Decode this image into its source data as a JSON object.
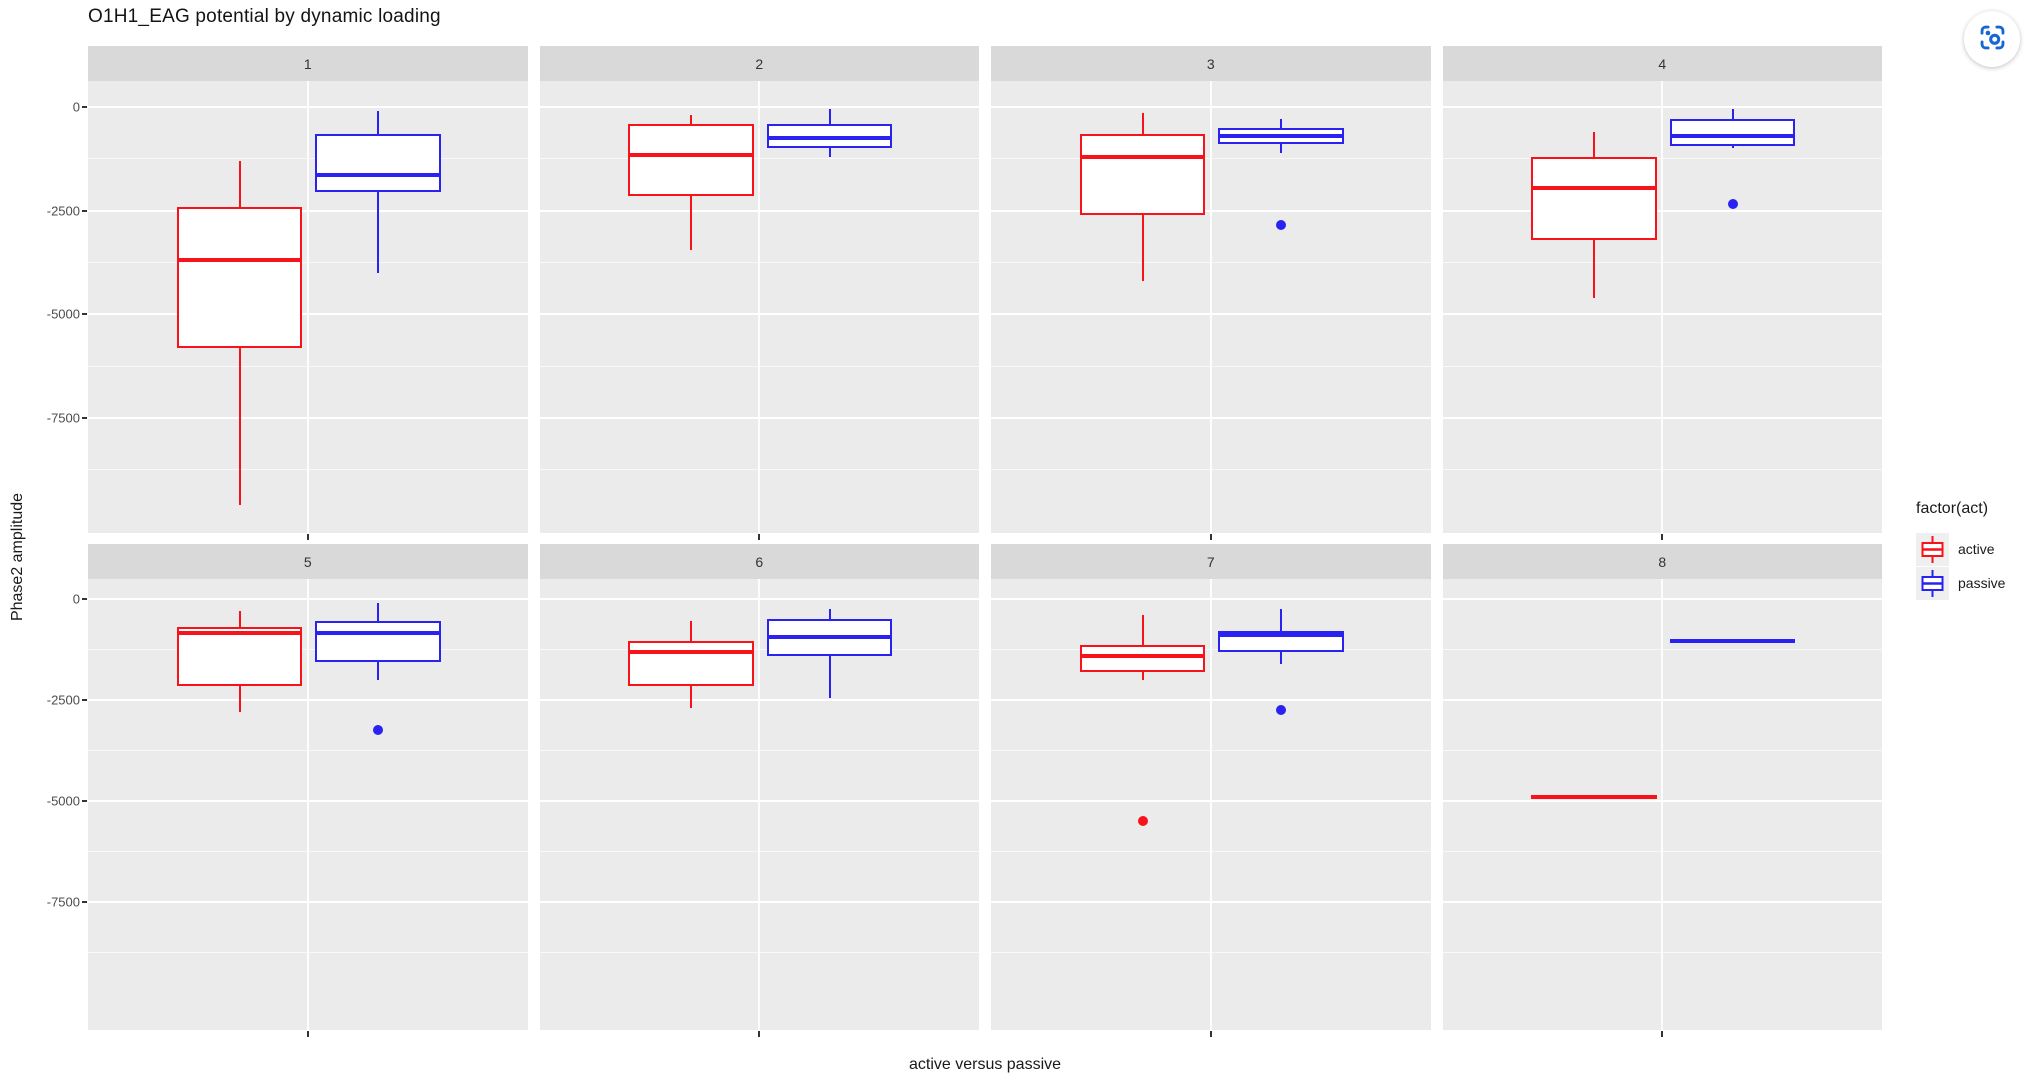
{
  "page": {
    "background": "#ffffff"
  },
  "toolbar": {
    "capture_button": {
      "icon": "screen-capture-icon",
      "color": "#1767d2"
    }
  },
  "chart_data": {
    "type": "boxplot",
    "title": "O1H1_EAG potential by dynamic loading",
    "xlabel": "active versus passive",
    "ylabel": "Phase2 amplitude",
    "facet_variable_values": [
      "1",
      "2",
      "3",
      "4",
      "5",
      "6",
      "7",
      "8"
    ],
    "y_ticks": [
      0,
      -2500,
      -5000,
      -7500
    ],
    "ylim": [
      600,
      -10500
    ],
    "x_tick_labels": [
      "",
      "",
      "",
      "",
      "",
      "",
      "",
      ""
    ],
    "grid": "white major and minor gridlines on gray panels",
    "legend": {
      "title": "factor(act)",
      "position": "right",
      "entries": [
        {
          "label": "active",
          "color": "#f8121a"
        },
        {
          "label": "passive",
          "color": "#2a22f0"
        }
      ]
    },
    "facets": [
      {
        "label": "1",
        "boxes": [
          {
            "group": "active",
            "whislo": -9600,
            "q1": -5800,
            "med": -3700,
            "q3": -2400,
            "whishi": -1300,
            "outliers": []
          },
          {
            "group": "passive",
            "whislo": -4000,
            "q1": -2050,
            "med": -1650,
            "q3": -650,
            "whishi": -100,
            "outliers": []
          }
        ]
      },
      {
        "label": "2",
        "boxes": [
          {
            "group": "active",
            "whislo": -3450,
            "q1": -2150,
            "med": -1150,
            "q3": -400,
            "whishi": -200,
            "outliers": []
          },
          {
            "group": "passive",
            "whislo": -1200,
            "q1": -1000,
            "med": -750,
            "q3": -400,
            "whishi": -50,
            "outliers": []
          }
        ]
      },
      {
        "label": "3",
        "boxes": [
          {
            "group": "active",
            "whislo": -4200,
            "q1": -2600,
            "med": -1200,
            "q3": -650,
            "whishi": -150,
            "outliers": []
          },
          {
            "group": "passive",
            "whislo": -1100,
            "q1": -900,
            "med": -700,
            "q3": -500,
            "whishi": -300,
            "outliers": [
              -2850
            ]
          }
        ]
      },
      {
        "label": "4",
        "boxes": [
          {
            "group": "active",
            "whislo": -4600,
            "q1": -3200,
            "med": -1950,
            "q3": -1200,
            "whishi": -600,
            "outliers": []
          },
          {
            "group": "passive",
            "whislo": -1000,
            "q1": -950,
            "med": -700,
            "q3": -300,
            "whishi": -50,
            "outliers": [
              -2350
            ]
          }
        ]
      },
      {
        "label": "5",
        "boxes": [
          {
            "group": "active",
            "whislo": -2800,
            "q1": -2150,
            "med": -850,
            "q3": -700,
            "whishi": -300,
            "outliers": []
          },
          {
            "group": "passive",
            "whislo": -2000,
            "q1": -1550,
            "med": -850,
            "q3": -550,
            "whishi": -100,
            "outliers": [
              -3250
            ]
          }
        ]
      },
      {
        "label": "6",
        "boxes": [
          {
            "group": "active",
            "whislo": -2700,
            "q1": -2150,
            "med": -1300,
            "q3": -1050,
            "whishi": -550,
            "outliers": []
          },
          {
            "group": "passive",
            "whislo": -2450,
            "q1": -1400,
            "med": -950,
            "q3": -500,
            "whishi": -250,
            "outliers": []
          }
        ]
      },
      {
        "label": "7",
        "boxes": [
          {
            "group": "active",
            "whislo": -2000,
            "q1": -1800,
            "med": -1400,
            "q3": -1150,
            "whishi": -400,
            "outliers": [
              -5500
            ]
          },
          {
            "group": "passive",
            "whislo": -1600,
            "q1": -1300,
            "med": -900,
            "q3": -800,
            "whishi": -250,
            "outliers": [
              -2750
            ]
          }
        ]
      },
      {
        "label": "8",
        "boxes": [
          {
            "group": "active",
            "single": true,
            "med": -4900,
            "outliers": []
          },
          {
            "group": "passive",
            "single": true,
            "med": -1050,
            "outliers": []
          }
        ]
      }
    ]
  }
}
